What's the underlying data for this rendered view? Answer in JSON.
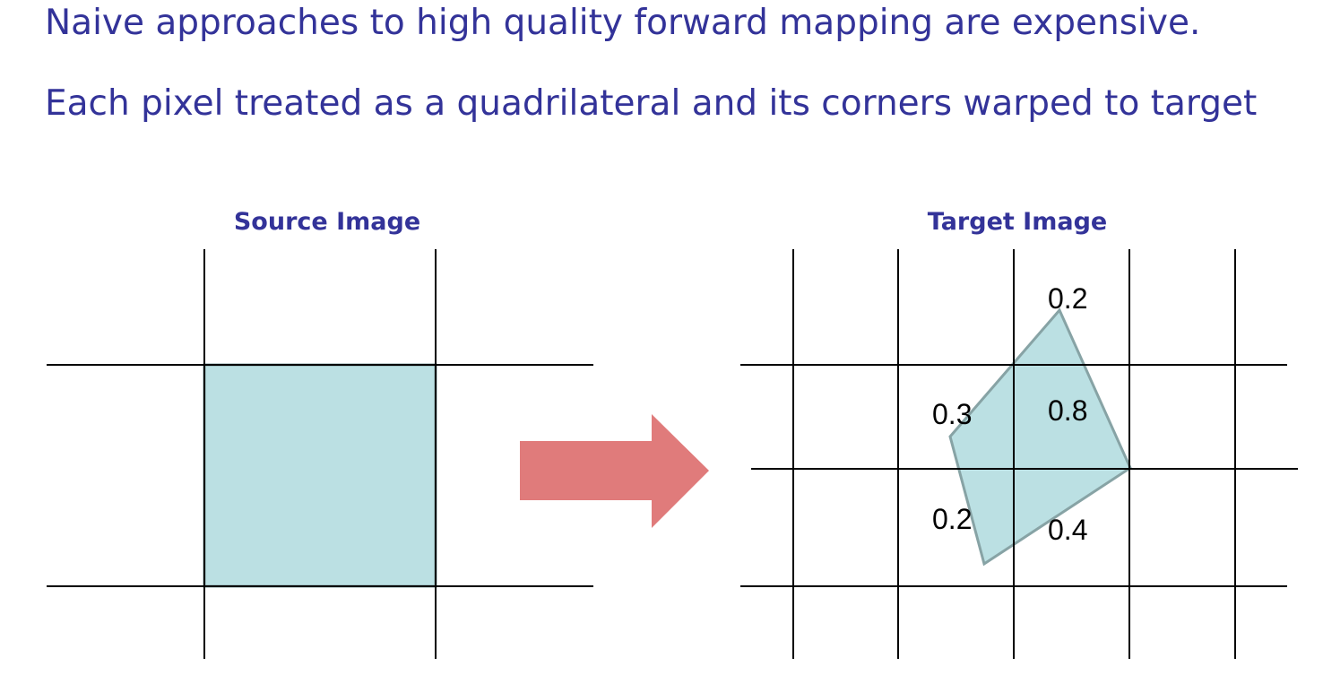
{
  "heading": {
    "line1": "Naive approaches to high quality forward mapping are expensive.",
    "line2": "Each pixel treated as a quadrilateral and its corners warped to target"
  },
  "source_panel": {
    "title": "Source Image"
  },
  "target_panel": {
    "title": "Target Image",
    "weights": {
      "top_center": "0.2",
      "mid_left": "0.3",
      "mid_center": "0.8",
      "low_left": "0.2",
      "low_center": "0.4"
    }
  },
  "colors": {
    "heading_text": "#333399",
    "pixel_fill": "#bbe0e3",
    "pixel_outline": "#87a3a5",
    "arrow_fill": "#e07b7b",
    "grid_lines": "#000000"
  }
}
